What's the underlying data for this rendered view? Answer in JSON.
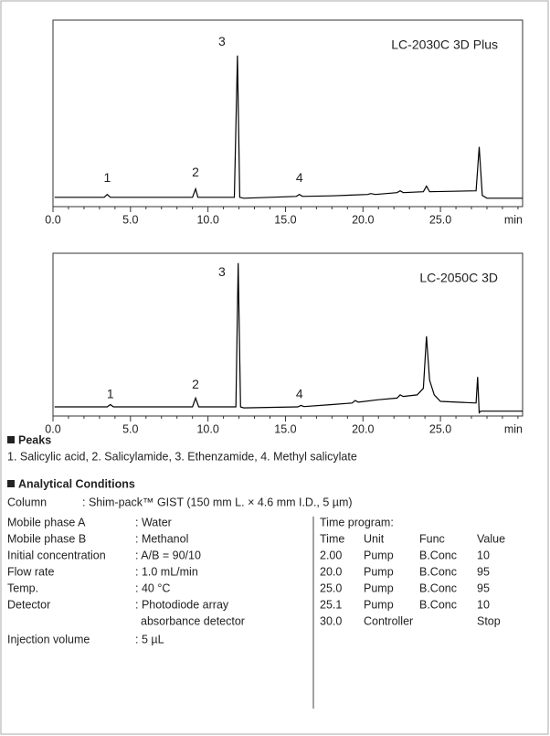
{
  "chart_data": [
    {
      "type": "line",
      "label": "LC-2030C 3D Plus",
      "x_label": "min",
      "color": "#000000",
      "x": [
        0.1,
        3.3,
        3.5,
        3.7,
        9.0,
        9.2,
        9.35,
        11.7,
        11.9,
        12.05,
        12.3,
        15.7,
        15.9,
        16.1,
        18,
        20.3,
        20.5,
        20.8,
        22.2,
        22.4,
        22.6,
        23.9,
        24.1,
        24.3,
        27.3,
        27.5,
        27.7,
        28,
        30.3
      ],
      "values": [
        5,
        5,
        6.5,
        5,
        5,
        9.5,
        5,
        5,
        81,
        5,
        4.5,
        5.5,
        6.5,
        5.5,
        5.8,
        6.5,
        7,
        6.5,
        7.5,
        8.5,
        7.5,
        8,
        11,
        8,
        8.5,
        32,
        6,
        4.5,
        4.5
      ],
      "xlim": [
        0,
        30.3
      ],
      "ylim": [
        0,
        100
      ],
      "xticks": [
        {
          "value": 0,
          "label": "0.0"
        },
        {
          "value": 5,
          "label": "5.0"
        },
        {
          "value": 10,
          "label": "10.0"
        },
        {
          "value": 15,
          "label": "15.0"
        },
        {
          "value": 20,
          "label": "20.0"
        },
        {
          "value": 25,
          "label": "25.0"
        }
      ],
      "minor_xticks": [
        1,
        2,
        3,
        4,
        6,
        7,
        8,
        9,
        11,
        12,
        13,
        14,
        16,
        17,
        18,
        19,
        21,
        22,
        23,
        24,
        26,
        27,
        28,
        29,
        30
      ],
      "annotations": [
        {
          "text": "1",
          "x": 3.5,
          "y": 15
        },
        {
          "text": "2",
          "x": 9.2,
          "y": 18
        },
        {
          "text": "3",
          "x": 10.9,
          "y": 88
        },
        {
          "text": "4",
          "x": 15.9,
          "y": 15
        }
      ]
    },
    {
      "type": "line",
      "label": "LC-2050C 3D",
      "x_label": "min",
      "color": "#000000",
      "x": [
        0.1,
        3.5,
        3.7,
        3.9,
        9.0,
        9.2,
        9.4,
        11.8,
        11.95,
        12.1,
        12.3,
        15.8,
        16,
        16.2,
        18,
        19.3,
        19.5,
        19.7,
        21,
        22.2,
        22.4,
        22.6,
        23.5,
        23.9,
        24.1,
        24.3,
        24.6,
        25,
        27.3,
        27.4,
        27.5,
        27.6,
        28,
        30.3
      ],
      "values": [
        5.6,
        5.6,
        7,
        5.6,
        5.6,
        11,
        5.6,
        5.6,
        94,
        5.6,
        5,
        5.6,
        6.5,
        5.8,
        7,
        8,
        9.5,
        8.5,
        10,
        11,
        13,
        12,
        13,
        17,
        49,
        22,
        13,
        9,
        8,
        24,
        2,
        3,
        3,
        3
      ],
      "xlim": [
        0,
        30.3
      ],
      "ylim": [
        0,
        100
      ],
      "xticks": [
        {
          "value": 0,
          "label": "0.0"
        },
        {
          "value": 5,
          "label": "5.0"
        },
        {
          "value": 10,
          "label": "10.0"
        },
        {
          "value": 15,
          "label": "15.0"
        },
        {
          "value": 20,
          "label": "20.0"
        },
        {
          "value": 25,
          "label": "25.0"
        }
      ],
      "minor_xticks": [
        1,
        2,
        3,
        4,
        6,
        7,
        8,
        9,
        11,
        12,
        13,
        14,
        16,
        17,
        18,
        19,
        21,
        22,
        23,
        24,
        26,
        27,
        28,
        29,
        30
      ],
      "annotations": [
        {
          "text": "1",
          "x": 3.7,
          "y": 13
        },
        {
          "text": "2",
          "x": 9.2,
          "y": 19
        },
        {
          "text": "3",
          "x": 10.9,
          "y": 88
        },
        {
          "text": "4",
          "x": 15.9,
          "y": 13
        }
      ]
    }
  ],
  "peaks": {
    "heading": "Peaks",
    "text": "1. Salicylic acid, 2. Salicylamide, 3. Ethenzamide, 4. Methyl salicylate"
  },
  "conditions": {
    "heading": "Analytical Conditions",
    "column": {
      "label": "Column",
      "value": ": Shim-pack™ GIST (150 mm L. × 4.6 mm I.D., 5 µm)"
    },
    "rows": [
      {
        "label": "Mobile phase A",
        "value": [
          ": Water"
        ]
      },
      {
        "label": "Mobile phase B",
        "value": [
          ": Methanol"
        ]
      },
      {
        "label": "Initial concentration",
        "value": [
          ": A/B = 90/10"
        ]
      },
      {
        "label": "Flow rate",
        "value": [
          ": 1.0 mL/min"
        ]
      },
      {
        "label": "Temp.",
        "value": [
          ": 40 °C"
        ]
      },
      {
        "label": "Detector",
        "value": [
          ": Photodiode array",
          "absorbance detector"
        ]
      },
      {
        "label": "Injection volume",
        "value": [
          ": 5 µL"
        ]
      }
    ],
    "time_program": {
      "title": "Time program:",
      "header": [
        "Time",
        "Unit",
        "Func",
        "Value"
      ],
      "rows": [
        [
          "2.00",
          "Pump",
          "B.Conc",
          "10"
        ],
        [
          "20.0",
          "Pump",
          "B.Conc",
          "95"
        ],
        [
          "25.0",
          "Pump",
          "B.Conc",
          "95"
        ],
        [
          "25.1",
          "Pump",
          "B.Conc",
          "10"
        ],
        [
          "30.0",
          "Controller",
          "Stop"
        ]
      ]
    }
  }
}
